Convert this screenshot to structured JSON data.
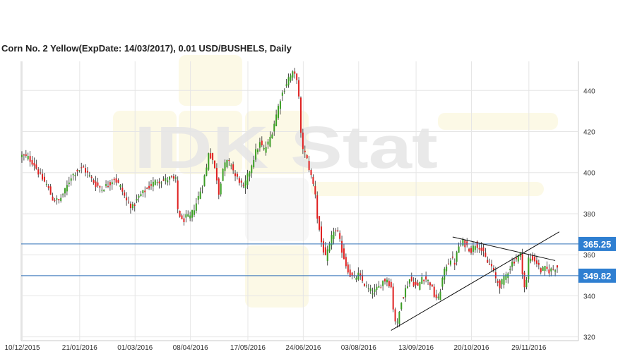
{
  "chart_data": {
    "type": "candlestick",
    "title": "Corn  No. 2 Yellow(ExpDate: 14/03/2017), 0.01 USD/BUSHELS, Daily",
    "watermark": "IDK Stat",
    "ylim": [
      318,
      454
    ],
    "y_ticks": [
      "320",
      "340",
      "360",
      "380",
      "400",
      "420",
      "440"
    ],
    "y_tick_values": [
      320,
      340,
      360,
      380,
      400,
      420,
      440
    ],
    "x_ticks": [
      "10/12/2015",
      "21/01/2016",
      "01/03/2016",
      "08/04/2016",
      "17/05/2016",
      "24/06/2016",
      "03/08/2016",
      "13/09/2016",
      "20/10/2016",
      "29/11/2016"
    ],
    "x_tick_bar_index": [
      0,
      28,
      55,
      82,
      110,
      137,
      164,
      192,
      219,
      247
    ],
    "bars_count": 262,
    "levels": [
      {
        "label": "365.25",
        "value": 365.25
      },
      {
        "label": "349.82",
        "value": 349.82
      }
    ],
    "trendlines": [
      {
        "name": "rising-support",
        "from": {
          "bar": 180,
          "value": 323
        },
        "to": {
          "bar": 262,
          "value": 371
        }
      },
      {
        "name": "falling-resistance",
        "from": {
          "bar": 210,
          "value": 368.5
        },
        "to": {
          "bar": 260,
          "value": 357
        }
      }
    ],
    "close_path_keypoints": [
      [
        0,
        408
      ],
      [
        3,
        407
      ],
      [
        6,
        404
      ],
      [
        9,
        398
      ],
      [
        12,
        394
      ],
      [
        15,
        387
      ],
      [
        18,
        386
      ],
      [
        21,
        391
      ],
      [
        24,
        398
      ],
      [
        27,
        401
      ],
      [
        30,
        402
      ],
      [
        33,
        398
      ],
      [
        36,
        394
      ],
      [
        39,
        392
      ],
      [
        42,
        394
      ],
      [
        45,
        397
      ],
      [
        48,
        393
      ],
      [
        51,
        386
      ],
      [
        54,
        383
      ],
      [
        57,
        388
      ],
      [
        60,
        391
      ],
      [
        63,
        394
      ],
      [
        66,
        396
      ],
      [
        69,
        396
      ],
      [
        72,
        397
      ],
      [
        75,
        396
      ],
      [
        76,
        382
      ],
      [
        78,
        376
      ],
      [
        80,
        378
      ],
      [
        82,
        378
      ],
      [
        85,
        385
      ],
      [
        88,
        394
      ],
      [
        90,
        402
      ],
      [
        91,
        410
      ],
      [
        93,
        406
      ],
      [
        95,
        397
      ],
      [
        96,
        390
      ],
      [
        98,
        402
      ],
      [
        100,
        405
      ],
      [
        102,
        404
      ],
      [
        104,
        398
      ],
      [
        106,
        396
      ],
      [
        108,
        392
      ],
      [
        110,
        398
      ],
      [
        112,
        404
      ],
      [
        114,
        410
      ],
      [
        116,
        414
      ],
      [
        118,
        411
      ],
      [
        120,
        414
      ],
      [
        122,
        420
      ],
      [
        124,
        428
      ],
      [
        126,
        436
      ],
      [
        128,
        441
      ],
      [
        130,
        446
      ],
      [
        132,
        448
      ],
      [
        134,
        446
      ],
      [
        135,
        436
      ],
      [
        136,
        418
      ],
      [
        137,
        412
      ],
      [
        139,
        406
      ],
      [
        141,
        398
      ],
      [
        143,
        390
      ],
      [
        144,
        378
      ],
      [
        146,
        366
      ],
      [
        148,
        358
      ],
      [
        150,
        364
      ],
      [
        152,
        372
      ],
      [
        154,
        370
      ],
      [
        156,
        362
      ],
      [
        158,
        355
      ],
      [
        160,
        350
      ],
      [
        162,
        348
      ],
      [
        164,
        350
      ],
      [
        166,
        347
      ],
      [
        168,
        344
      ],
      [
        170,
        342
      ],
      [
        172,
        342
      ],
      [
        174,
        344
      ],
      [
        176,
        347
      ],
      [
        178,
        348
      ],
      [
        180,
        344
      ],
      [
        181,
        334
      ],
      [
        182,
        328
      ],
      [
        183,
        326
      ],
      [
        185,
        338
      ],
      [
        187,
        343
      ],
      [
        189,
        348
      ],
      [
        191,
        346
      ],
      [
        193,
        344
      ],
      [
        195,
        349
      ],
      [
        197,
        348
      ],
      [
        199,
        346
      ],
      [
        201,
        340
      ],
      [
        203,
        338
      ],
      [
        205,
        348
      ],
      [
        207,
        355
      ],
      [
        209,
        358
      ],
      [
        211,
        356
      ],
      [
        213,
        364
      ],
      [
        215,
        366
      ],
      [
        217,
        364
      ],
      [
        219,
        362
      ],
      [
        221,
        365
      ],
      [
        223,
        364
      ],
      [
        225,
        360
      ],
      [
        227,
        356
      ],
      [
        229,
        354
      ],
      [
        231,
        348
      ],
      [
        233,
        345
      ],
      [
        235,
        348
      ],
      [
        237,
        352
      ],
      [
        239,
        356
      ],
      [
        241,
        358
      ],
      [
        243,
        360
      ],
      [
        244,
        352
      ],
      [
        245,
        344
      ],
      [
        246,
        347
      ],
      [
        247,
        358
      ],
      [
        249,
        358
      ],
      [
        251,
        356
      ],
      [
        253,
        352
      ],
      [
        255,
        353
      ],
      [
        257,
        352
      ],
      [
        259,
        353
      ],
      [
        261,
        354
      ]
    ]
  }
}
